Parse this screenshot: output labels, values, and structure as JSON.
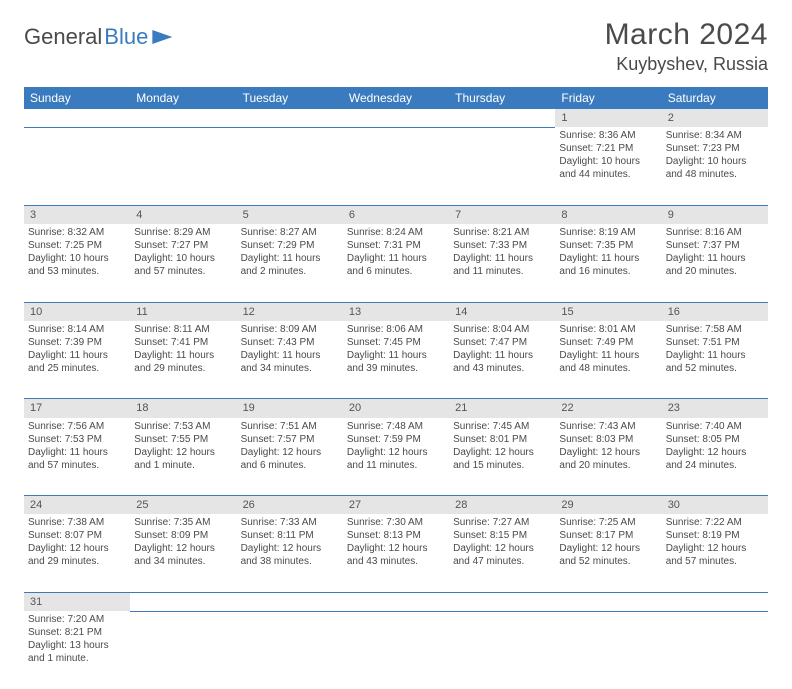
{
  "logo": {
    "text1": "General",
    "text2": "Blue"
  },
  "title": "March 2024",
  "location": "Kuybyshev, Russia",
  "colors": {
    "header_bg": "#3a7bbf",
    "header_text": "#ffffff",
    "daynum_bg": "#e5e5e5",
    "row_border": "#3a7bbf",
    "text": "#4a4a4a"
  },
  "typography": {
    "title_fontsize": 30,
    "location_fontsize": 18,
    "header_fontsize": 12,
    "cell_fontsize": 10
  },
  "layout": {
    "columns": 7,
    "rows": 6
  },
  "weekdays": [
    "Sunday",
    "Monday",
    "Tuesday",
    "Wednesday",
    "Thursday",
    "Friday",
    "Saturday"
  ],
  "weeks": [
    [
      null,
      null,
      null,
      null,
      null,
      {
        "day": "1",
        "sunrise": "Sunrise: 8:36 AM",
        "sunset": "Sunset: 7:21 PM",
        "daylight1": "Daylight: 10 hours",
        "daylight2": "and 44 minutes."
      },
      {
        "day": "2",
        "sunrise": "Sunrise: 8:34 AM",
        "sunset": "Sunset: 7:23 PM",
        "daylight1": "Daylight: 10 hours",
        "daylight2": "and 48 minutes."
      }
    ],
    [
      {
        "day": "3",
        "sunrise": "Sunrise: 8:32 AM",
        "sunset": "Sunset: 7:25 PM",
        "daylight1": "Daylight: 10 hours",
        "daylight2": "and 53 minutes."
      },
      {
        "day": "4",
        "sunrise": "Sunrise: 8:29 AM",
        "sunset": "Sunset: 7:27 PM",
        "daylight1": "Daylight: 10 hours",
        "daylight2": "and 57 minutes."
      },
      {
        "day": "5",
        "sunrise": "Sunrise: 8:27 AM",
        "sunset": "Sunset: 7:29 PM",
        "daylight1": "Daylight: 11 hours",
        "daylight2": "and 2 minutes."
      },
      {
        "day": "6",
        "sunrise": "Sunrise: 8:24 AM",
        "sunset": "Sunset: 7:31 PM",
        "daylight1": "Daylight: 11 hours",
        "daylight2": "and 6 minutes."
      },
      {
        "day": "7",
        "sunrise": "Sunrise: 8:21 AM",
        "sunset": "Sunset: 7:33 PM",
        "daylight1": "Daylight: 11 hours",
        "daylight2": "and 11 minutes."
      },
      {
        "day": "8",
        "sunrise": "Sunrise: 8:19 AM",
        "sunset": "Sunset: 7:35 PM",
        "daylight1": "Daylight: 11 hours",
        "daylight2": "and 16 minutes."
      },
      {
        "day": "9",
        "sunrise": "Sunrise: 8:16 AM",
        "sunset": "Sunset: 7:37 PM",
        "daylight1": "Daylight: 11 hours",
        "daylight2": "and 20 minutes."
      }
    ],
    [
      {
        "day": "10",
        "sunrise": "Sunrise: 8:14 AM",
        "sunset": "Sunset: 7:39 PM",
        "daylight1": "Daylight: 11 hours",
        "daylight2": "and 25 minutes."
      },
      {
        "day": "11",
        "sunrise": "Sunrise: 8:11 AM",
        "sunset": "Sunset: 7:41 PM",
        "daylight1": "Daylight: 11 hours",
        "daylight2": "and 29 minutes."
      },
      {
        "day": "12",
        "sunrise": "Sunrise: 8:09 AM",
        "sunset": "Sunset: 7:43 PM",
        "daylight1": "Daylight: 11 hours",
        "daylight2": "and 34 minutes."
      },
      {
        "day": "13",
        "sunrise": "Sunrise: 8:06 AM",
        "sunset": "Sunset: 7:45 PM",
        "daylight1": "Daylight: 11 hours",
        "daylight2": "and 39 minutes."
      },
      {
        "day": "14",
        "sunrise": "Sunrise: 8:04 AM",
        "sunset": "Sunset: 7:47 PM",
        "daylight1": "Daylight: 11 hours",
        "daylight2": "and 43 minutes."
      },
      {
        "day": "15",
        "sunrise": "Sunrise: 8:01 AM",
        "sunset": "Sunset: 7:49 PM",
        "daylight1": "Daylight: 11 hours",
        "daylight2": "and 48 minutes."
      },
      {
        "day": "16",
        "sunrise": "Sunrise: 7:58 AM",
        "sunset": "Sunset: 7:51 PM",
        "daylight1": "Daylight: 11 hours",
        "daylight2": "and 52 minutes."
      }
    ],
    [
      {
        "day": "17",
        "sunrise": "Sunrise: 7:56 AM",
        "sunset": "Sunset: 7:53 PM",
        "daylight1": "Daylight: 11 hours",
        "daylight2": "and 57 minutes."
      },
      {
        "day": "18",
        "sunrise": "Sunrise: 7:53 AM",
        "sunset": "Sunset: 7:55 PM",
        "daylight1": "Daylight: 12 hours",
        "daylight2": "and 1 minute."
      },
      {
        "day": "19",
        "sunrise": "Sunrise: 7:51 AM",
        "sunset": "Sunset: 7:57 PM",
        "daylight1": "Daylight: 12 hours",
        "daylight2": "and 6 minutes."
      },
      {
        "day": "20",
        "sunrise": "Sunrise: 7:48 AM",
        "sunset": "Sunset: 7:59 PM",
        "daylight1": "Daylight: 12 hours",
        "daylight2": "and 11 minutes."
      },
      {
        "day": "21",
        "sunrise": "Sunrise: 7:45 AM",
        "sunset": "Sunset: 8:01 PM",
        "daylight1": "Daylight: 12 hours",
        "daylight2": "and 15 minutes."
      },
      {
        "day": "22",
        "sunrise": "Sunrise: 7:43 AM",
        "sunset": "Sunset: 8:03 PM",
        "daylight1": "Daylight: 12 hours",
        "daylight2": "and 20 minutes."
      },
      {
        "day": "23",
        "sunrise": "Sunrise: 7:40 AM",
        "sunset": "Sunset: 8:05 PM",
        "daylight1": "Daylight: 12 hours",
        "daylight2": "and 24 minutes."
      }
    ],
    [
      {
        "day": "24",
        "sunrise": "Sunrise: 7:38 AM",
        "sunset": "Sunset: 8:07 PM",
        "daylight1": "Daylight: 12 hours",
        "daylight2": "and 29 minutes."
      },
      {
        "day": "25",
        "sunrise": "Sunrise: 7:35 AM",
        "sunset": "Sunset: 8:09 PM",
        "daylight1": "Daylight: 12 hours",
        "daylight2": "and 34 minutes."
      },
      {
        "day": "26",
        "sunrise": "Sunrise: 7:33 AM",
        "sunset": "Sunset: 8:11 PM",
        "daylight1": "Daylight: 12 hours",
        "daylight2": "and 38 minutes."
      },
      {
        "day": "27",
        "sunrise": "Sunrise: 7:30 AM",
        "sunset": "Sunset: 8:13 PM",
        "daylight1": "Daylight: 12 hours",
        "daylight2": "and 43 minutes."
      },
      {
        "day": "28",
        "sunrise": "Sunrise: 7:27 AM",
        "sunset": "Sunset: 8:15 PM",
        "daylight1": "Daylight: 12 hours",
        "daylight2": "and 47 minutes."
      },
      {
        "day": "29",
        "sunrise": "Sunrise: 7:25 AM",
        "sunset": "Sunset: 8:17 PM",
        "daylight1": "Daylight: 12 hours",
        "daylight2": "and 52 minutes."
      },
      {
        "day": "30",
        "sunrise": "Sunrise: 7:22 AM",
        "sunset": "Sunset: 8:19 PM",
        "daylight1": "Daylight: 12 hours",
        "daylight2": "and 57 minutes."
      }
    ],
    [
      {
        "day": "31",
        "sunrise": "Sunrise: 7:20 AM",
        "sunset": "Sunset: 8:21 PM",
        "daylight1": "Daylight: 13 hours",
        "daylight2": "and 1 minute."
      },
      null,
      null,
      null,
      null,
      null,
      null
    ]
  ]
}
